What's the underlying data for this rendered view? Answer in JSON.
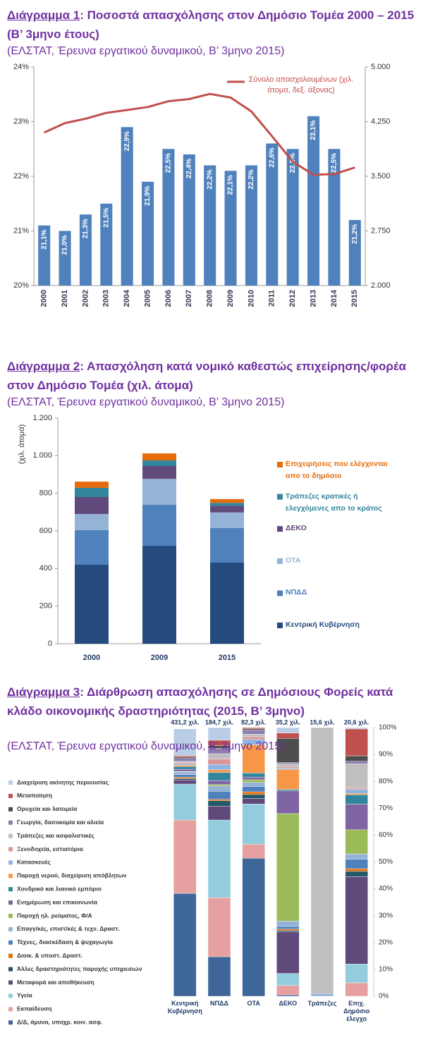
{
  "chart_data": [
    {
      "type": "bar_line",
      "number": "Διάγραμμα 1",
      "title": ": Ποσοστά απασχόλησης στον Δημόσιο Τομέα 2000 – 2015 (Β’ 3μηνο έτους)",
      "subtitle": "(ΕΛΣΤΑΤ, Έρευνα εργατικού δυναμικού, Β’ 3μηνο 2015)",
      "categories": [
        "2000",
        "2001",
        "2002",
        "2003",
        "2004",
        "2005",
        "2006",
        "2007",
        "2008",
        "2009",
        "2010",
        "2011",
        "2012",
        "2013",
        "2014",
        "2015"
      ],
      "series": [
        {
          "color": "#4f81bd",
          "values": [
            21.1,
            21.0,
            21.3,
            21.5,
            22.9,
            21.9,
            22.5,
            22.4,
            22.2,
            22.1,
            22.2,
            22.6,
            22.5,
            23.1,
            22.5,
            21.2
          ],
          "value_labels": [
            "21,1%",
            "21,0%",
            "21,3%",
            "21,5%",
            "22,9%",
            "21,9%",
            "22,5%",
            "22,4%",
            "22,2%",
            "22,1%",
            "22,2%",
            "22,6%",
            "22,5%",
            "23,1%",
            "22,5%",
            "21,2%"
          ]
        },
        {
          "name": "Σύνολο απασχολουμένων (χιλ. άτομα, δεξ. άξονας)",
          "color": "#c0504d",
          "axis": "y2",
          "values": [
            4100,
            4230,
            4290,
            4370,
            4410,
            4450,
            4530,
            4560,
            4630,
            4580,
            4390,
            4050,
            3700,
            3520,
            3530,
            3620
          ]
        }
      ],
      "ylim": [
        20,
        24
      ],
      "yticks": [
        {
          "value": 20,
          "label": "20%"
        },
        {
          "value": 21,
          "label": "21%"
        },
        {
          "value": 22,
          "label": "22%"
        },
        {
          "value": 23,
          "label": "23%"
        },
        {
          "value": 24,
          "label": "24%"
        }
      ],
      "y2lim": [
        2000,
        5000
      ],
      "y2ticks": [
        {
          "value": 2000,
          "label": "2.000"
        },
        {
          "value": 2750,
          "label": "2.750"
        },
        {
          "value": 3500,
          "label": "3.500"
        },
        {
          "value": 4250,
          "label": "4.250"
        },
        {
          "value": 5000,
          "label": "5.000"
        }
      ],
      "legend": "top-right"
    },
    {
      "type": "stacked_bar",
      "number": "Διάγραμμα 2",
      "title": ": Απασχόληση κατά νομικό καθεστώς επιχείρησης/φορέα στον Δημόσιο Τομέα (χιλ. άτομα)",
      "subtitle": "(ΕΛΣΤΑΤ, Έρευνα εργατικού δυναμικού, Β’ 3μηνο 2015)",
      "ylabel": "(χιλ. άτομα)",
      "categories": [
        "2000",
        "2009",
        "2015"
      ],
      "series": [
        {
          "name": "Κεντρική Κυβέρνηση",
          "color": "#254a7d",
          "values": [
            420,
            521,
            431.2
          ]
        },
        {
          "name": "ΝΠΔΔ",
          "color": "#4f81bd",
          "values": [
            184,
            218,
            184.7
          ]
        },
        {
          "name": "ΟΤΑ",
          "color": "#95b3d7",
          "values": [
            86,
            138,
            82.3
          ]
        },
        {
          "name": "ΔΕΚΟ",
          "color": "#604a7b",
          "values": [
            90,
            68,
            35.2
          ]
        },
        {
          "name": "Τράπεζες κρατικές ή ελεγχόμενες απο το κράτος",
          "color": "#31859c",
          "values": [
            49,
            30,
            15.6
          ]
        },
        {
          "name": "Επιχειρήσεις που ελέγχονται απο το δημόσιο",
          "color": "#e46c0a",
          "values": [
            33,
            37,
            20.6
          ]
        }
      ],
      "ylim": [
        0,
        1200
      ],
      "yticks": [
        0,
        200,
        400,
        600,
        800,
        {
          "value": 1000,
          "label": "1.000"
        },
        {
          "value": 1200,
          "label": "1.200"
        }
      ],
      "legend": "right"
    },
    {
      "type": "stacked_bar_100",
      "number": "Διάγραμμα 3",
      "title": ": Διάρθρωση απασχόλησης σε Δημόσιους Φορείς κατά κλάδο οικονομικής δραστηριότητας (2015, Β’ 3μηνο)",
      "subtitle": "(ΕΛΣΤΑΤ, Έρευνα εργατικού δυναμικού, Β’ 3μηνο 2015)",
      "categories": [
        "Κεντρική Κυβέρνηση",
        "ΝΠΔΔ",
        "ΟΤΑ",
        "ΔΕΚΟ",
        "Τράπεζες",
        "Επιχ. Δημόσιο έλεγχο"
      ],
      "totals": [
        431.2,
        184.7,
        82.3,
        35.2,
        15.6,
        20.6
      ],
      "total_labels": [
        "431,2 χιλ.",
        "184,7 χιλ.",
        "82,3 χιλ.",
        "35,2 χιλ.",
        "15,6 χιλ.",
        "20,6 χιλ."
      ],
      "series": [
        {
          "name": "Δ/Δ, άμυνα, υποχρ. κοιν. ασφ.",
          "color": "#3f6699",
          "values": [
            38.3,
            14.7,
            51.4,
            0.5,
            0,
            0
          ]
        },
        {
          "name": "Εκπαίδευση",
          "color": "#e6a0a0",
          "values": [
            27.3,
            22,
            5.2,
            3.5,
            0,
            5
          ]
        },
        {
          "name": "Υγεία",
          "color": "#93cddd",
          "values": [
            13.4,
            28.9,
            15,
            4.5,
            0,
            7
          ]
        },
        {
          "name": "Μεταφορά και αποθήκευση",
          "color": "#604a7b",
          "values": [
            1.5,
            5.2,
            2,
            15.5,
            0,
            32.5
          ]
        },
        {
          "name": "Άλλες δραστηριότητες παροχής υπηρεσιών",
          "color": "#215968",
          "values": [
            0.5,
            2,
            1.5,
            0.5,
            0,
            2
          ]
        },
        {
          "name": "Διοικ. & υποστ. Δραστ.",
          "color": "#e46c0a",
          "values": [
            0.5,
            0.5,
            1,
            0.5,
            0,
            1
          ]
        },
        {
          "name": "Τέχνες, διασκέδαση & ψυχαγωγία",
          "color": "#4f81bd",
          "values": [
            1,
            3,
            2,
            1,
            0,
            3.5
          ]
        },
        {
          "name": "Επαγγ/κές, επιστ/κές & τεχν.  Δραστ.",
          "color": "#95b3d7",
          "values": [
            1,
            2,
            1.5,
            2,
            1,
            2
          ]
        },
        {
          "name": "Παροχή ηλ. ρεύματος, Φ/Α",
          "color": "#9bbb59",
          "values": [
            0.2,
            0.5,
            1,
            40,
            0,
            9
          ]
        },
        {
          "name": "Ενημέρωση και επικοινωνία",
          "color": "#7f64a2",
          "values": [
            0.8,
            1.5,
            1,
            8.5,
            0,
            9.5
          ]
        },
        {
          "name": "Χονδρικό και λιανικό  εμπόριο",
          "color": "#31859c",
          "values": [
            1,
            3,
            1.5,
            0.5,
            0,
            3.5
          ]
        },
        {
          "name": "Παροχή νερού, διαχείριση απόβλητων",
          "color": "#f79646",
          "values": [
            0.5,
            1,
            10.5,
            7.5,
            0,
            0.5
          ]
        },
        {
          "name": "Κατασκευές",
          "color": "#8eb4e3",
          "values": [
            0.5,
            2,
            2,
            0.5,
            0,
            1.5
          ]
        },
        {
          "name": "Ξενοδοχεία, εστιατόρια",
          "color": "#d99694",
          "values": [
            0.5,
            2,
            1,
            0.5,
            0,
            0.5
          ]
        },
        {
          "name": "Τράπεζες και ασφαλιστικές",
          "color": "#bfbfbf",
          "values": [
            0.5,
            2,
            1,
            1,
            99,
            9
          ]
        },
        {
          "name": "Γεωργία, δασοκομία και αλιεία",
          "color": "#8c7bb0",
          "values": [
            1,
            2,
            1.5,
            0.5,
            0,
            1
          ]
        },
        {
          "name": "Ορυχεία και λατομεία",
          "color": "#4d4d4d",
          "values": [
            0.5,
            1,
            0.5,
            9,
            0,
            2
          ]
        },
        {
          "name": "Μεταποίηση",
          "color": "#c0504d",
          "values": [
            0.5,
            2,
            0.4,
            2,
            0,
            10
          ]
        },
        {
          "name": "Διαχείριση ακίνητης περιουσίας",
          "color": "#b9cde5",
          "values": [
            10,
            4.7,
            0,
            2,
            0,
            0.5
          ]
        }
      ],
      "ylim": [
        0,
        100
      ],
      "yticks": [
        {
          "value": 0,
          "label": "0%"
        },
        {
          "value": 10,
          "label": "10%"
        },
        {
          "value": 20,
          "label": "20%"
        },
        {
          "value": 30,
          "label": "30%"
        },
        {
          "value": 40,
          "label": "40%"
        },
        {
          "value": 50,
          "label": "50%"
        },
        {
          "value": 60,
          "label": "60%"
        },
        {
          "value": 70,
          "label": "70%"
        },
        {
          "value": 80,
          "label": "80%"
        },
        {
          "value": 90,
          "label": "90%"
        },
        {
          "value": 100,
          "label": "100%"
        }
      ],
      "legend": "left"
    }
  ]
}
